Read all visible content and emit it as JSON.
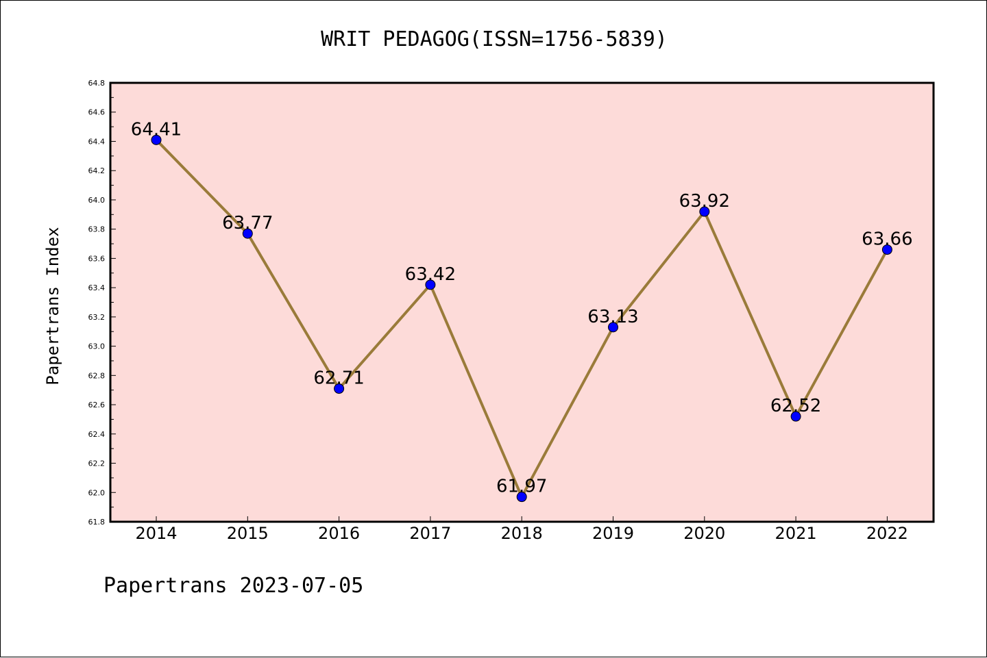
{
  "chart_data": {
    "type": "line",
    "title": "WRIT PEDAGOG(ISSN=1756-5839)",
    "xlabel": "",
    "ylabel": "Papertrans Index",
    "categories": [
      "2014",
      "2015",
      "2016",
      "2017",
      "2018",
      "2019",
      "2020",
      "2021",
      "2022"
    ],
    "values": [
      64.41,
      63.77,
      62.71,
      63.42,
      61.97,
      63.13,
      63.92,
      62.52,
      63.66
    ],
    "data_labels": [
      "64.41",
      "63.77",
      "62.71",
      "63.42",
      "61.97",
      "63.13",
      "63.92",
      "62.52",
      "63.66"
    ],
    "ylim": [
      61.8,
      64.8
    ],
    "yticks": [
      "61.8",
      "62.0",
      "62.2",
      "62.4",
      "62.6",
      "62.8",
      "63.0",
      "63.2",
      "63.4",
      "63.6",
      "63.8",
      "64.0",
      "64.2",
      "64.4",
      "64.6",
      "64.8"
    ],
    "grid": false,
    "colors": {
      "plot_background": "#fddbd9",
      "line": "#9a7b3a",
      "marker": "#0000ff"
    }
  },
  "footer": "Papertrans 2023-07-05"
}
